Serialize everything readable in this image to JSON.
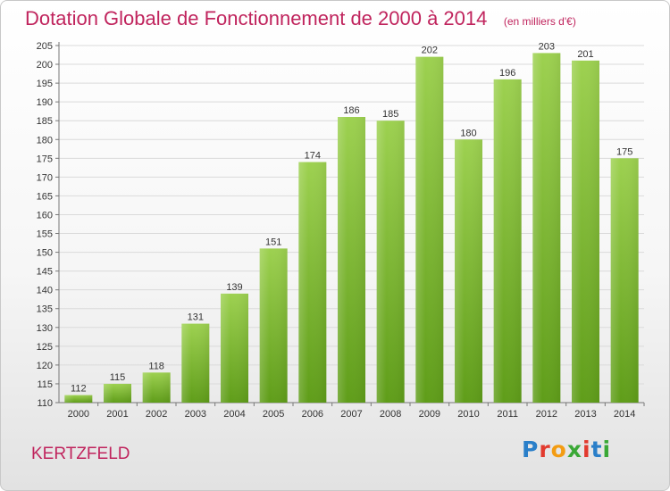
{
  "title": "Dotation Globale de Fonctionnement de 2000 à 2014",
  "subtitle": "(en milliers d'€)",
  "commune": "KERTZFELD",
  "logo": {
    "letters": [
      "P",
      "r",
      "o",
      "x",
      "i",
      "t",
      "i"
    ],
    "colors": [
      "#2a7fc9",
      "#e23a2e",
      "#f39c12",
      "#3aa836",
      "#e23a2e",
      "#2a7fc9",
      "#3aa836"
    ]
  },
  "colors": {
    "bar_top": "#9dd150",
    "bar_bottom": "#5f9d19",
    "accent": "#c0245d"
  },
  "chart_data": {
    "type": "bar",
    "categories": [
      "2000",
      "2001",
      "2002",
      "2003",
      "2004",
      "2005",
      "2006",
      "2007",
      "2008",
      "2009",
      "2010",
      "2011",
      "2012",
      "2013",
      "2014"
    ],
    "values": [
      112,
      115,
      118,
      131,
      139,
      151,
      174,
      186,
      185,
      202,
      180,
      196,
      203,
      201,
      175
    ],
    "title": "Dotation Globale de Fonctionnement de 2000 à 2014",
    "xlabel": "",
    "ylabel": "",
    "ylim": [
      110,
      205
    ],
    "yticks": [
      110,
      115,
      120,
      125,
      130,
      135,
      140,
      145,
      150,
      155,
      160,
      165,
      170,
      175,
      180,
      185,
      190,
      195,
      200,
      205
    ],
    "grid": true,
    "legend": "none"
  }
}
